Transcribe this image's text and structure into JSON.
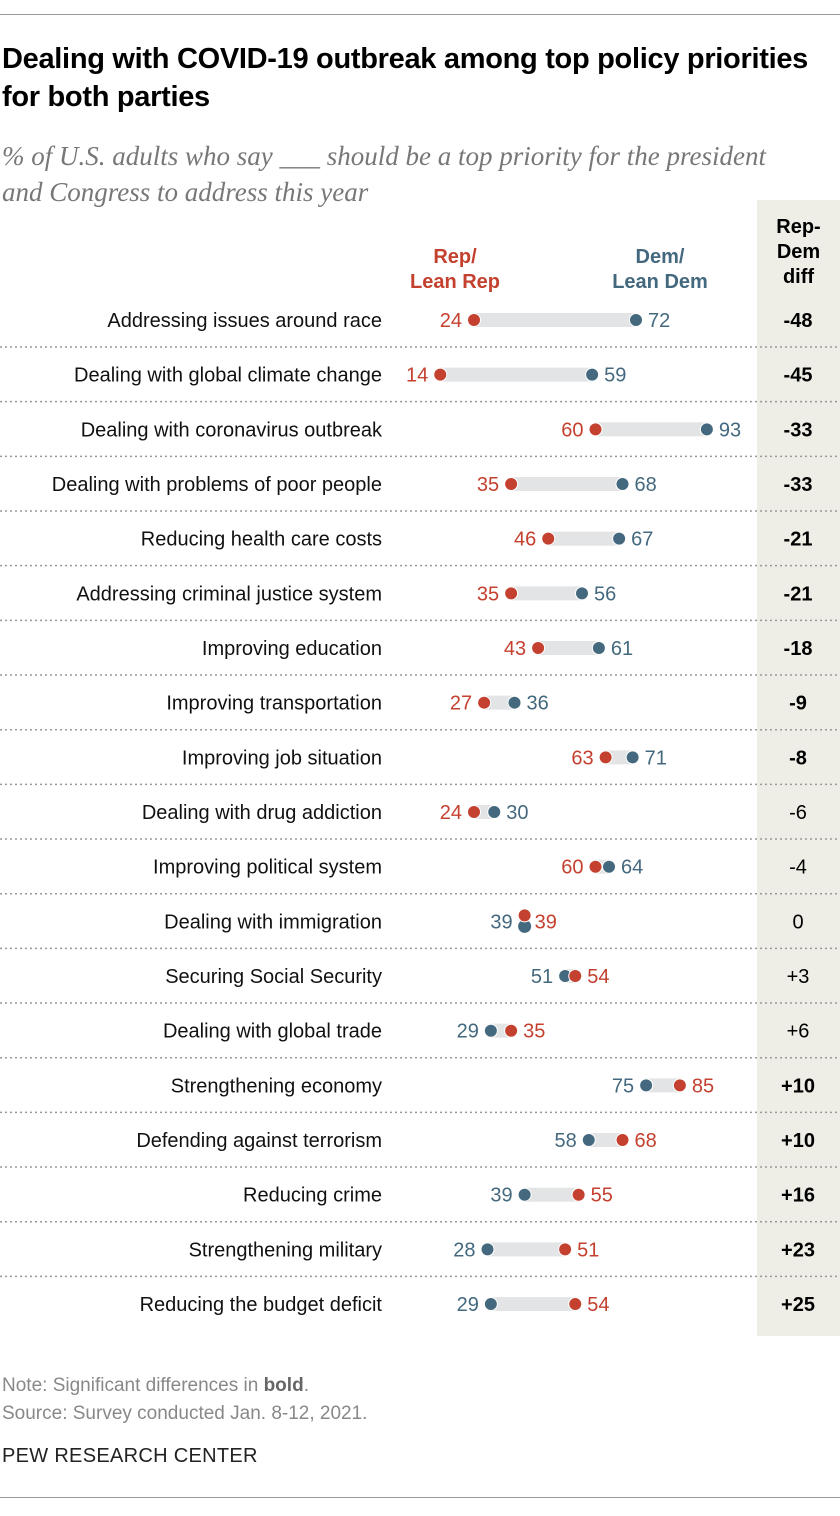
{
  "colors": {
    "rep": "#c4402f",
    "dem": "#44697f",
    "bar": "#e3e4e6",
    "diff_bg": "#eeeee6"
  },
  "chart_data": {
    "type": "dot",
    "title": "Dealing with COVID-19 outbreak among top policy priorities for both parties",
    "subtitle": "% of U.S. adults who say ___ should be a top priority for the president and Congress to address this year",
    "legend": {
      "rep": "Rep/ Lean Rep",
      "dem": "Dem/ Lean Dem",
      "diff": "Rep- Dem diff"
    },
    "legend_rep_lines": [
      "Rep/",
      "Lean Rep"
    ],
    "legend_dem_lines": [
      "Dem/",
      "Lean Dem"
    ],
    "diff_header_lines": [
      "Rep-",
      "Dem",
      "diff"
    ],
    "xlim": [
      0,
      100
    ],
    "rows": [
      {
        "label": "Addressing issues around race",
        "rep": 24,
        "dem": 72,
        "diff": "-48",
        "bold": true
      },
      {
        "label": "Dealing with global climate change",
        "rep": 14,
        "dem": 59,
        "diff": "-45",
        "bold": true
      },
      {
        "label": "Dealing with coronavirus outbreak",
        "rep": 60,
        "dem": 93,
        "diff": "-33",
        "bold": true
      },
      {
        "label": "Dealing with problems of poor people",
        "rep": 35,
        "dem": 68,
        "diff": "-33",
        "bold": true
      },
      {
        "label": "Reducing health care costs",
        "rep": 46,
        "dem": 67,
        "diff": "-21",
        "bold": true
      },
      {
        "label": "Addressing criminal justice system",
        "rep": 35,
        "dem": 56,
        "diff": "-21",
        "bold": true
      },
      {
        "label": "Improving education",
        "rep": 43,
        "dem": 61,
        "diff": "-18",
        "bold": true
      },
      {
        "label": "Improving transportation",
        "rep": 27,
        "dem": 36,
        "diff": "-9",
        "bold": true
      },
      {
        "label": "Improving job situation",
        "rep": 63,
        "dem": 71,
        "diff": "-8",
        "bold": true
      },
      {
        "label": "Dealing with drug addiction",
        "rep": 24,
        "dem": 30,
        "diff": "-6",
        "bold": false
      },
      {
        "label": "Improving political system",
        "rep": 60,
        "dem": 64,
        "diff": "-4",
        "bold": false
      },
      {
        "label": "Dealing with immigration",
        "rep": 39,
        "dem": 39,
        "diff": "0",
        "bold": false
      },
      {
        "label": "Securing Social Security",
        "rep": 54,
        "dem": 51,
        "diff": "+3",
        "bold": false
      },
      {
        "label": "Dealing with global trade",
        "rep": 35,
        "dem": 29,
        "diff": "+6",
        "bold": false
      },
      {
        "label": "Strengthening economy",
        "rep": 85,
        "dem": 75,
        "diff": "+10",
        "bold": true
      },
      {
        "label": "Defending against terrorism",
        "rep": 68,
        "dem": 58,
        "diff": "+10",
        "bold": true
      },
      {
        "label": "Reducing crime",
        "rep": 55,
        "dem": 39,
        "diff": "+16",
        "bold": true
      },
      {
        "label": "Strengthening military",
        "rep": 51,
        "dem": 28,
        "diff": "+23",
        "bold": true
      },
      {
        "label": "Reducing the budget deficit",
        "rep": 54,
        "dem": 29,
        "diff": "+25",
        "bold": true
      }
    ]
  },
  "notes": {
    "note_prefix": "Note: Significant differences in ",
    "note_bold": "bold",
    "note_suffix": ".",
    "source": "Source: Survey conducted Jan. 8-12, 2021."
  },
  "org": "PEW RESEARCH CENTER"
}
